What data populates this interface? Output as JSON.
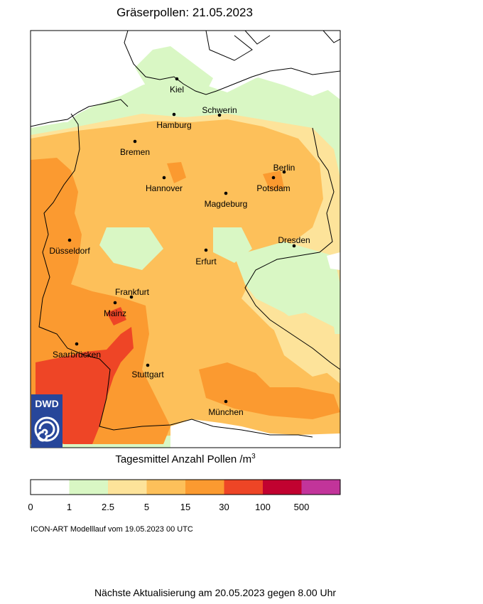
{
  "title": "Gräserpollen: 21.05.2023",
  "cities": [
    {
      "name": "Kiel"
    },
    {
      "name": "Hamburg"
    },
    {
      "name": "Schwerin"
    },
    {
      "name": "Bremen"
    },
    {
      "name": "Berlin"
    },
    {
      "name": "Potsdam"
    },
    {
      "name": "Hannover"
    },
    {
      "name": "Magdeburg"
    },
    {
      "name": "Dresden"
    },
    {
      "name": "Düsseldorf"
    },
    {
      "name": "Erfurt"
    },
    {
      "name": "Frankfurt"
    },
    {
      "name": "Mainz"
    },
    {
      "name": "Saarbrücken"
    },
    {
      "name": "Stuttgart"
    },
    {
      "name": "München"
    }
  ],
  "logo": {
    "text": "DWD",
    "color": "#27469a"
  },
  "legend": {
    "title": "Tagesmittel Anzahl Pollen",
    "unit_base": "m",
    "unit_exp": "3",
    "colors": [
      "#ffffff",
      "#d9f7c4",
      "#fde39a",
      "#fdc05a",
      "#fb9a30",
      "#ee4526",
      "#c10230",
      "#c2349a"
    ],
    "ticks": [
      "0",
      "1",
      "2.5",
      "5",
      "15",
      "30",
      "100",
      "500"
    ]
  },
  "model_run": "ICON-ART Modelllauf vom  19.05.2023 00 UTC",
  "next_update": "Nächste Aktualisierung am 20.05.2023 gegen 8.00 Uhr"
}
